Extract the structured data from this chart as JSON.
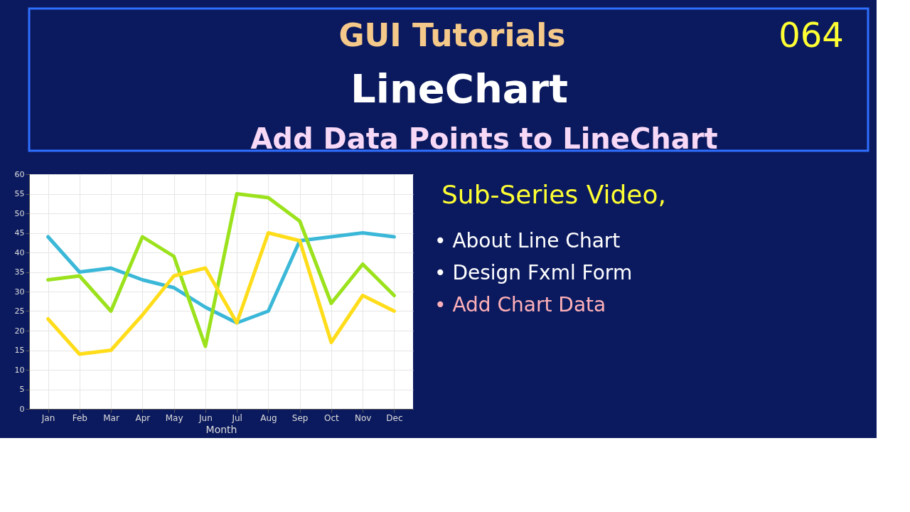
{
  "chart_data": {
    "type": "line",
    "title": "LineChart",
    "subtitle": "Add Data Points to LineChart",
    "xlabel": "Month",
    "categories": [
      "Jan",
      "Feb",
      "Mar",
      "Apr",
      "May",
      "Jun",
      "Jul",
      "Aug",
      "Sep",
      "Oct",
      "Nov",
      "Dec"
    ],
    "series": [
      {
        "color": "#3bb8d8",
        "values": [
          44,
          35,
          36,
          33,
          31,
          26,
          22,
          25,
          43,
          44,
          45,
          44
        ]
      },
      {
        "color": "#9be21c",
        "values": [
          33,
          34,
          25,
          44,
          39,
          16,
          55,
          54,
          48,
          27,
          37,
          29
        ]
      },
      {
        "color": "#ffdd1a",
        "values": [
          23,
          14,
          15,
          24,
          34,
          36,
          22,
          45,
          43,
          17,
          29,
          25
        ]
      }
    ],
    "ylim": [
      0,
      60
    ],
    "yticks": [
      0,
      5,
      10,
      15,
      20,
      25,
      30,
      35,
      40,
      45,
      50,
      55,
      60
    ],
    "grid": true,
    "marker": "none",
    "line_style": "solid",
    "legend": false,
    "annotations": [
      "GUI Tutorials",
      "064",
      "Sub-Series Video,",
      "• About Line Chart",
      "• Design Fxml Form",
      "• Add Chart Data"
    ]
  }
}
